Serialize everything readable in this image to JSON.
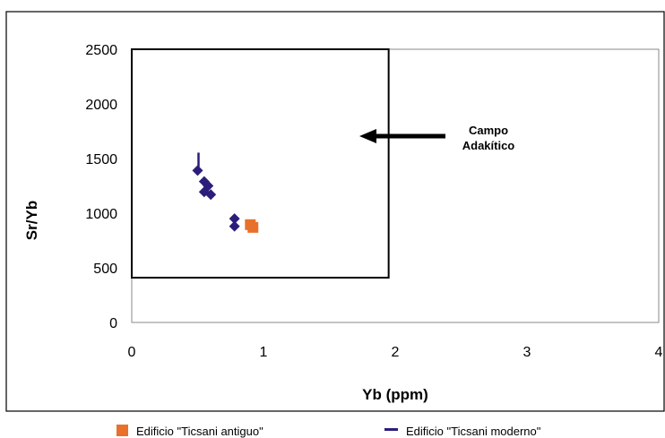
{
  "chart_data": {
    "type": "scatter",
    "title": "",
    "xlabel": "Yb (ppm)",
    "ylabel": "Sr/Yb",
    "xlim": [
      0,
      4
    ],
    "ylim": [
      0,
      2500
    ],
    "x_ticks": [
      "0",
      "1",
      "2",
      "3",
      "4"
    ],
    "y_ticks": [
      "0",
      "500",
      "1000",
      "1500",
      "2000",
      "2500"
    ],
    "grid": false,
    "legend_position": "bottom",
    "annotation": {
      "lines": [
        "Campo",
        "Adakítico"
      ],
      "arrow_points_to": "adakitic field box"
    },
    "adakitic_field": {
      "x": [
        0,
        1.95
      ],
      "y": [
        410,
        2500
      ]
    },
    "series": [
      {
        "name": "Edificio \"Ticsani antiguo\"",
        "marker": "square",
        "color": "#e8702a",
        "points": [
          {
            "x": 0.9,
            "y": 895
          },
          {
            "x": 0.92,
            "y": 870
          }
        ]
      },
      {
        "name": "Edificio \"Ticsani moderno\"",
        "marker": "diamond",
        "color": "#2b1e7a",
        "points": [
          {
            "x": 0.5,
            "y": 1390
          },
          {
            "x": 0.55,
            "y": 1290
          },
          {
            "x": 0.58,
            "y": 1250
          },
          {
            "x": 0.55,
            "y": 1195
          },
          {
            "x": 0.6,
            "y": 1170
          },
          {
            "x": 0.78,
            "y": 950
          },
          {
            "x": 0.78,
            "y": 880
          }
        ]
      }
    ]
  }
}
